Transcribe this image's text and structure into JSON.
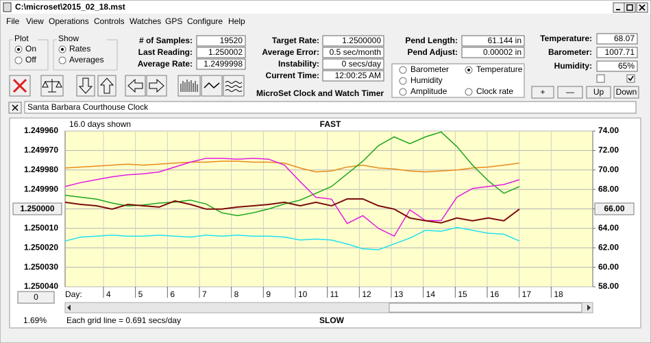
{
  "window": {
    "title": "C:\\microset\\2015_02_18.mst"
  },
  "menu": [
    "File",
    "View",
    "Operations",
    "Controls",
    "Watches",
    "GPS",
    "Configure",
    "Help"
  ],
  "plot": {
    "title": "Plot",
    "options": [
      "On",
      "Off"
    ],
    "selected": 0
  },
  "show": {
    "title": "Show",
    "options": [
      "Rates",
      "Averages"
    ],
    "selected": 0
  },
  "fields": [
    {
      "label": "# of Samples:",
      "value": "19520"
    },
    {
      "label": "Last Reading:",
      "value": "1.250002"
    },
    {
      "label": "Average Rate:",
      "value": "1.2499998"
    },
    {
      "label": "Target Rate:",
      "value": "1.2500000"
    },
    {
      "label": "Average Error:",
      "value": "0.5 sec/month"
    },
    {
      "label": "Instability:",
      "value": "0 secs/day"
    },
    {
      "label": "Current Time:",
      "value": "12:00:25 AM"
    },
    {
      "label": "Pend Length:",
      "value": "61.144 in"
    },
    {
      "label": "Pend Adjust:",
      "value": "0.00002 in"
    },
    {
      "label": "Temperature:",
      "value": "68.07"
    },
    {
      "label": "Barometer:",
      "value": "1007.71"
    },
    {
      "label": "Humidity:",
      "value": "65%"
    }
  ],
  "app_name": "MicroSet Clock and Watch Timer",
  "checkboxes": [
    false,
    true
  ],
  "buttons": [
    "+",
    "—",
    "Up",
    "Down"
  ],
  "clock_name": "Santa Barbara Courthouse Clock",
  "chart_data": {
    "type": "line",
    "title": "FAST",
    "bottom_title": "SLOW",
    "days_shown": "16.0 days shown",
    "x_label": "Day:",
    "footer_left": "1.69%",
    "footer_note": "Each grid line = 0.691 secs/day",
    "left_button": "1.250000",
    "right_button": "66.00",
    "zero_button": "0",
    "selected_series": 1,
    "grid": true,
    "y_inverted": true,
    "xlim": [
      2.8,
      19.3
    ],
    "xticks": [
      4,
      5,
      6,
      7,
      8,
      9,
      10,
      11,
      12,
      13,
      14,
      15,
      16,
      17,
      18
    ],
    "ylim": [
      1.24996,
      1.25004
    ],
    "yticks": [
      {
        "value": 1.24996,
        "label": "1.249960"
      },
      {
        "value": 1.24997,
        "label": "1.249970"
      },
      {
        "value": 1.24998,
        "label": "1.249980"
      },
      {
        "value": 1.24999,
        "label": "1.249990"
      },
      {
        "value": 1.25,
        "label": "1.250000"
      },
      {
        "value": 1.25001,
        "label": "1.250010"
      },
      {
        "value": 1.25002,
        "label": "1.250020"
      },
      {
        "value": 1.25003,
        "label": "1.250030"
      },
      {
        "value": 1.25004,
        "label": "1.250040"
      }
    ],
    "y2lim": [
      58,
      74
    ],
    "y2ticks": [
      {
        "value": 74,
        "label": "74.00"
      },
      {
        "value": 72,
        "label": "72.00"
      },
      {
        "value": 70,
        "label": "70.00"
      },
      {
        "value": 68,
        "label": "68.00"
      },
      {
        "value": 66,
        "label": "66.00"
      },
      {
        "value": 64,
        "label": "64.00"
      },
      {
        "value": 62,
        "label": "62.00"
      },
      {
        "value": 60,
        "label": "60.00"
      },
      {
        "value": 58,
        "label": "58.00"
      }
    ],
    "x": [
      2.8,
      3.29,
      3.78,
      4.27,
      4.76,
      5.25,
      5.74,
      6.23,
      6.72,
      7.21,
      7.7,
      8.19,
      8.68,
      9.17,
      9.66,
      10.15,
      10.64,
      11.13,
      11.62,
      12.11,
      12.6,
      13.09,
      13.58,
      14.07,
      14.56,
      15.05,
      15.54,
      16.03,
      16.52,
      17.01
    ],
    "series": [
      {
        "name": "Barometer",
        "color": "#e88a1a",
        "axis": "y2",
        "values": [
          70.2,
          70.3,
          70.4,
          70.5,
          70.6,
          70.5,
          70.6,
          70.7,
          70.8,
          70.8,
          70.9,
          70.9,
          70.8,
          70.8,
          70.7,
          70.2,
          69.8,
          69.9,
          70.3,
          70.5,
          70.2,
          70.1,
          69.9,
          69.8,
          69.9,
          70.0,
          70.2,
          70.3,
          70.5,
          70.7
        ]
      },
      {
        "name": "Temperature",
        "color": "#1aa51a",
        "axis": "y2",
        "values": [
          67.4,
          67.2,
          67.0,
          66.6,
          66.3,
          66.4,
          66.6,
          66.7,
          66.9,
          66.5,
          65.6,
          65.3,
          65.6,
          66.0,
          66.5,
          66.9,
          67.6,
          68.3,
          69.6,
          70.9,
          72.5,
          73.4,
          72.7,
          73.4,
          73.9,
          72.4,
          70.5,
          68.9,
          67.6,
          68.3
        ]
      },
      {
        "name": "Humidity",
        "color": "#e01ae0",
        "axis": "y2",
        "values": [
          68.3,
          68.7,
          69.0,
          69.3,
          69.5,
          69.6,
          69.8,
          70.3,
          70.8,
          71.2,
          71.2,
          71.1,
          71.2,
          71.1,
          70.5,
          68.8,
          67.2,
          67.0,
          64.5,
          65.3,
          64.0,
          63.2,
          65.9,
          64.8,
          64.8,
          67.2,
          68.1,
          68.3,
          68.5,
          69.0
        ]
      },
      {
        "name": "Amplitude",
        "color": "#22e0f0",
        "axis": "y2",
        "values": [
          62.7,
          63.1,
          63.2,
          63.3,
          63.2,
          63.2,
          63.3,
          63.2,
          63.1,
          63.3,
          63.2,
          63.3,
          63.2,
          63.2,
          63.1,
          62.8,
          62.9,
          62.8,
          62.4,
          61.9,
          61.8,
          62.4,
          63.0,
          63.8,
          63.7,
          64.1,
          63.8,
          63.5,
          63.4,
          62.7
        ]
      },
      {
        "name": "Clock rate",
        "color": "#7a0c0c",
        "axis": "y",
        "values": [
          1.2499966,
          1.2499977,
          1.2499984,
          1.2500001,
          1.2499977,
          1.2499984,
          1.2499991,
          1.2499959,
          1.2499977,
          1.2500001,
          1.2500001,
          1.2499991,
          1.2499984,
          1.2499977,
          1.2499966,
          1.2499984,
          1.2499966,
          1.2499984,
          1.2499949,
          1.2499949,
          1.2499984,
          1.2500001,
          1.2500047,
          1.2500061,
          1.2500072,
          1.2500047,
          1.2500061,
          1.2500047,
          1.2500061,
          1.2500001
        ]
      }
    ]
  }
}
